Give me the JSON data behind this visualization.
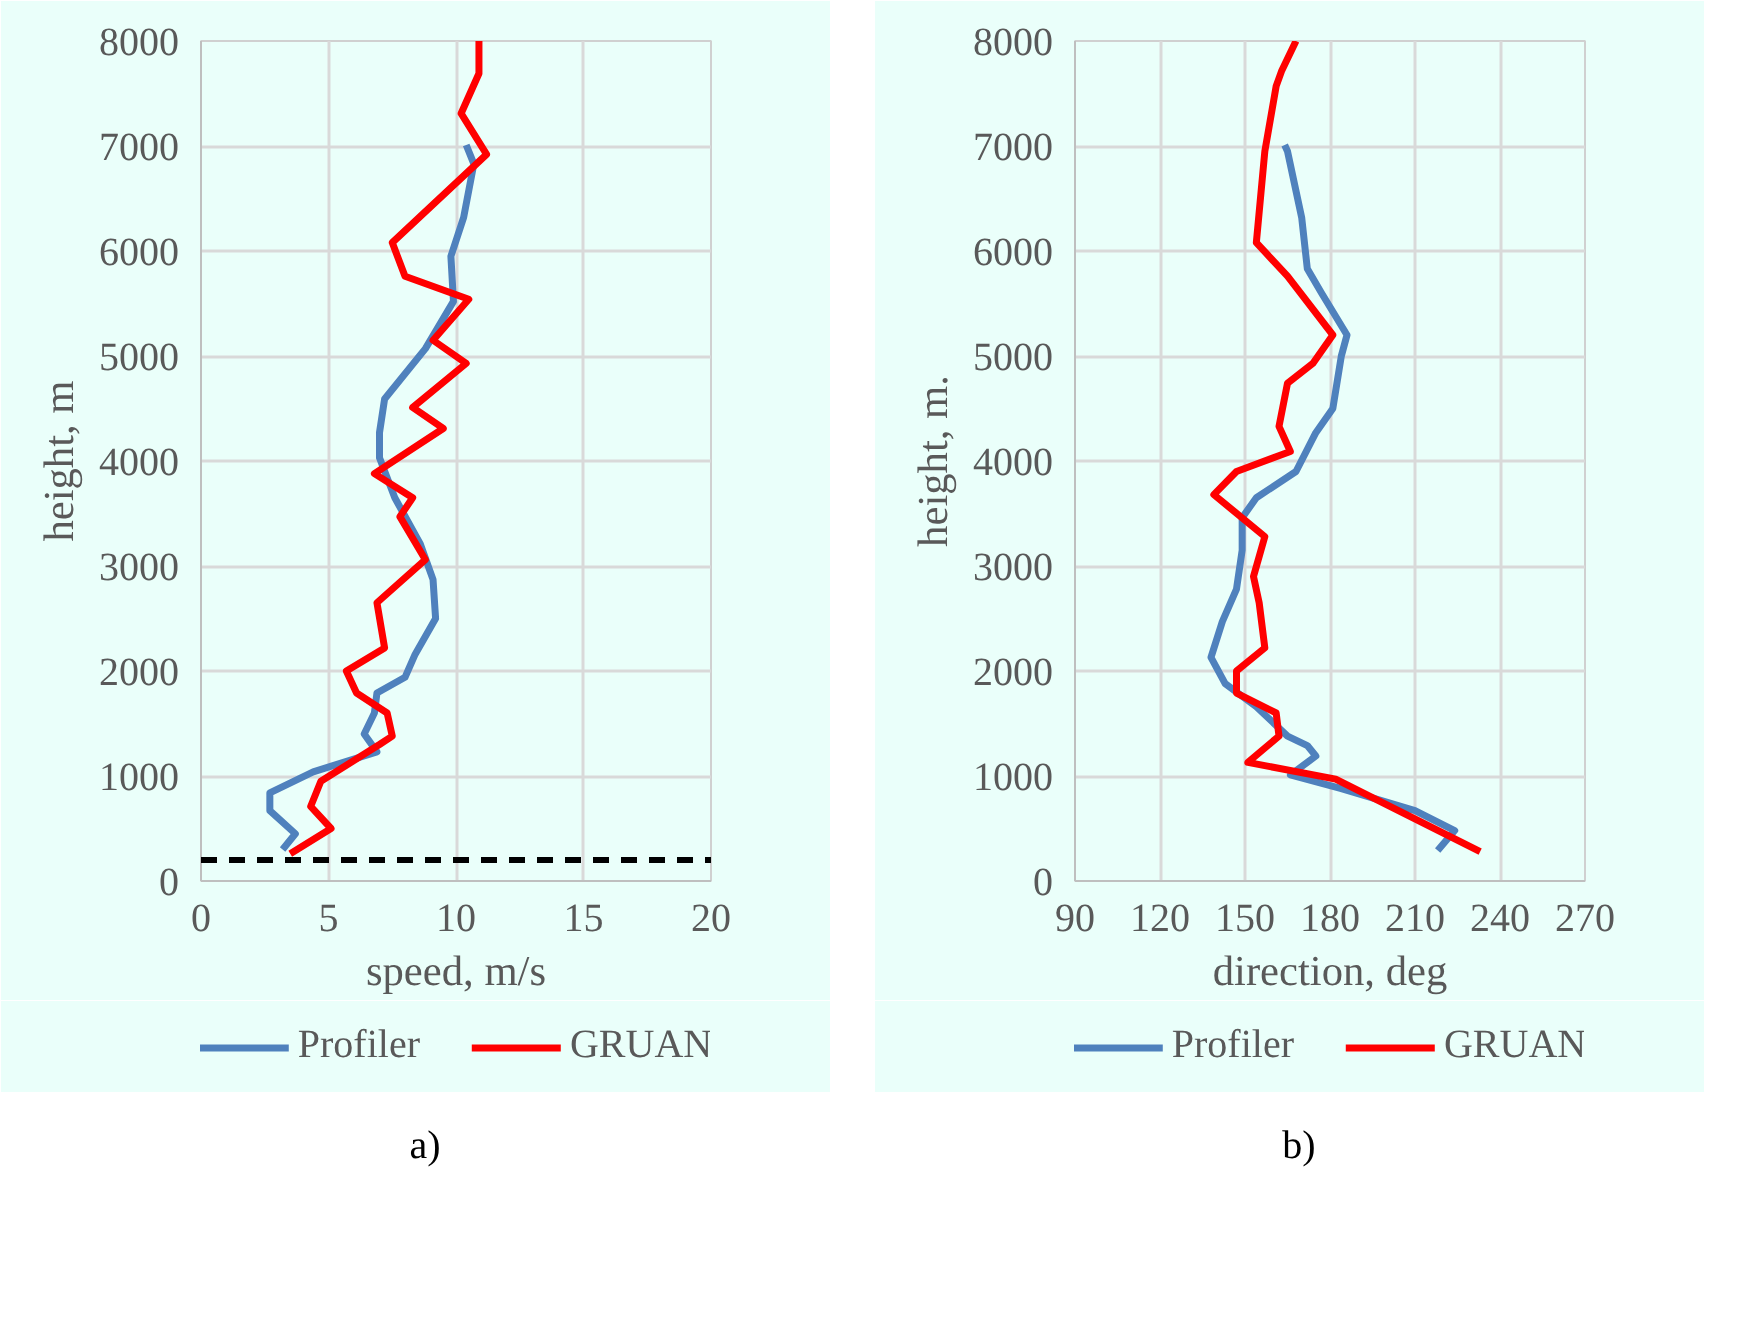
{
  "chart_data": [
    {
      "type": "line",
      "xlabel": "speed, m/s",
      "ylabel": "height, m",
      "xlim": [
        0,
        20
      ],
      "xticks": [
        0,
        5,
        10,
        15,
        20
      ],
      "ylim": [
        0,
        8000
      ],
      "yticks": [
        0,
        1000,
        2000,
        3000,
        4000,
        5000,
        6000,
        7000,
        8000
      ],
      "grid": true,
      "legend": "bottom",
      "annotations": [
        "a)"
      ],
      "ref_lines": [
        {
          "axis": "y",
          "value": 200,
          "color": "#000000",
          "line_style": "dashed"
        }
      ],
      "series": [
        {
          "name": "Profiler",
          "color": "#4f81bd",
          "x": [
            3.2,
            3.7,
            2.7,
            2.7,
            4.4,
            6.9,
            6.4,
            6.8,
            6.9,
            8.0,
            8.4,
            9.2,
            9.1,
            8.6,
            7.6,
            7.0,
            7.0,
            7.2,
            8.8,
            9.9,
            9.8,
            10.3,
            10.7,
            10.4
          ],
          "values": [
            300,
            450,
            670,
            840,
            1040,
            1230,
            1400,
            1600,
            1790,
            1940,
            2160,
            2500,
            2870,
            3210,
            3650,
            4030,
            4270,
            4590,
            5070,
            5520,
            5950,
            6320,
            6830,
            7010
          ]
        },
        {
          "name": "GRUAN",
          "color": "#ff0000",
          "x": [
            3.5,
            5.1,
            4.3,
            4.7,
            7.0,
            7.5,
            7.3,
            6.1,
            5.7,
            7.2,
            6.9,
            8.8,
            7.8,
            8.3,
            6.8,
            9.5,
            8.3,
            10.4,
            9.1,
            10.5,
            8.0,
            7.5,
            11.2,
            10.2,
            10.9,
            10.9
          ],
          "values": [
            260,
            500,
            710,
            950,
            1300,
            1380,
            1600,
            1790,
            2000,
            2220,
            2650,
            3060,
            3470,
            3650,
            3880,
            4310,
            4510,
            4930,
            5150,
            5540,
            5760,
            6080,
            6920,
            7310,
            7690,
            8000
          ]
        }
      ]
    },
    {
      "type": "line",
      "xlabel": "direction, deg",
      "ylabel": "height, m.",
      "xlim": [
        90,
        270
      ],
      "xticks": [
        90,
        120,
        150,
        180,
        210,
        240,
        270
      ],
      "ylim": [
        0,
        8000
      ],
      "yticks": [
        0,
        1000,
        2000,
        3000,
        4000,
        5000,
        6000,
        7000,
        8000
      ],
      "grid": true,
      "legend": "bottom",
      "annotations": [
        "b)"
      ],
      "series": [
        {
          "name": "Profiler",
          "color": "#4f81bd",
          "x": [
            218,
            224,
            210,
            184,
            166,
            175,
            172,
            165,
            154,
            143,
            138,
            142,
            147,
            149,
            149,
            154,
            168,
            175,
            181,
            184,
            186,
            177,
            172,
            170,
            165,
            164
          ],
          "values": [
            290,
            480,
            670,
            880,
            1010,
            1190,
            1290,
            1380,
            1660,
            1880,
            2130,
            2470,
            2780,
            3150,
            3460,
            3650,
            3900,
            4270,
            4500,
            5000,
            5200,
            5600,
            5830,
            6320,
            6950,
            7010
          ]
        },
        {
          "name": "GRUAN",
          "color": "#ff0000",
          "x": [
            233,
            182,
            151,
            162,
            161,
            147,
            147,
            157,
            155,
            153,
            157,
            139,
            147,
            166,
            162,
            165,
            174,
            181,
            165,
            154,
            157,
            161,
            163,
            168
          ],
          "values": [
            280,
            970,
            1130,
            1380,
            1600,
            1790,
            2000,
            2220,
            2650,
            2900,
            3280,
            3680,
            3900,
            4090,
            4330,
            4740,
            4930,
            5200,
            5760,
            6080,
            6950,
            7570,
            7720,
            8000
          ]
        }
      ]
    }
  ]
}
